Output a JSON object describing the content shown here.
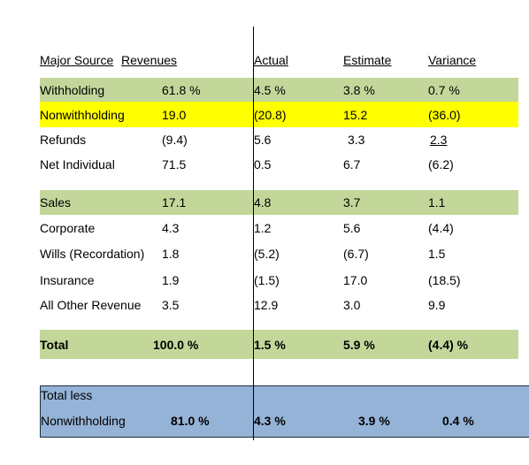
{
  "header": [
    "Major Source",
    "Revenues",
    "Actual",
    "Estimate",
    "Variance"
  ],
  "rows": [
    {
      "cells": [
        "Withholding",
        "61.8 %",
        "4.5 %",
        "3.8 %",
        "0.7 %"
      ],
      "color": "#c4d79b"
    },
    {
      "cells": [
        "Nonwithholding",
        "19.0",
        "(20.8)",
        "15.2",
        "(36.0)"
      ],
      "color": "#ffff00"
    },
    {
      "cells": [
        "Refunds",
        "(9.4)",
        "5.6",
        "3.3",
        "2.3"
      ]
    },
    {
      "cells": [
        "Net Individual",
        "71.5",
        "0.5",
        "6.7",
        "(6.2)"
      ]
    },
    {
      "cells": [
        "Sales",
        "17.1",
        "4.8",
        "3.7",
        "1.1"
      ],
      "color": "#c4d79b"
    },
    {
      "cells": [
        "Corporate",
        "4.3",
        "1.2",
        "5.6",
        "(4.4)"
      ]
    },
    {
      "cells": [
        "Wills (Recordation)",
        "1.8",
        "(5.2)",
        "(6.7)",
        "1.5"
      ]
    },
    {
      "cells": [
        "Insurance",
        "1.9",
        "(1.5)",
        "17.0",
        "(18.5)"
      ]
    },
    {
      "cells": [
        "All Other Revenue",
        "3.5",
        "12.9",
        "3.0",
        "9.9"
      ]
    },
    {
      "cells": [
        "Total",
        "100.0 %",
        "1.5 %",
        "5.9 %",
        "(4.4) %"
      ],
      "color": "#c4d79b",
      "bold": true
    }
  ],
  "summary": {
    "label": [
      "Total less",
      "Nonwithholding"
    ],
    "cells": [
      "81.0 %",
      "4.3 %",
      "3.9 %",
      "0.4 %"
    ]
  }
}
